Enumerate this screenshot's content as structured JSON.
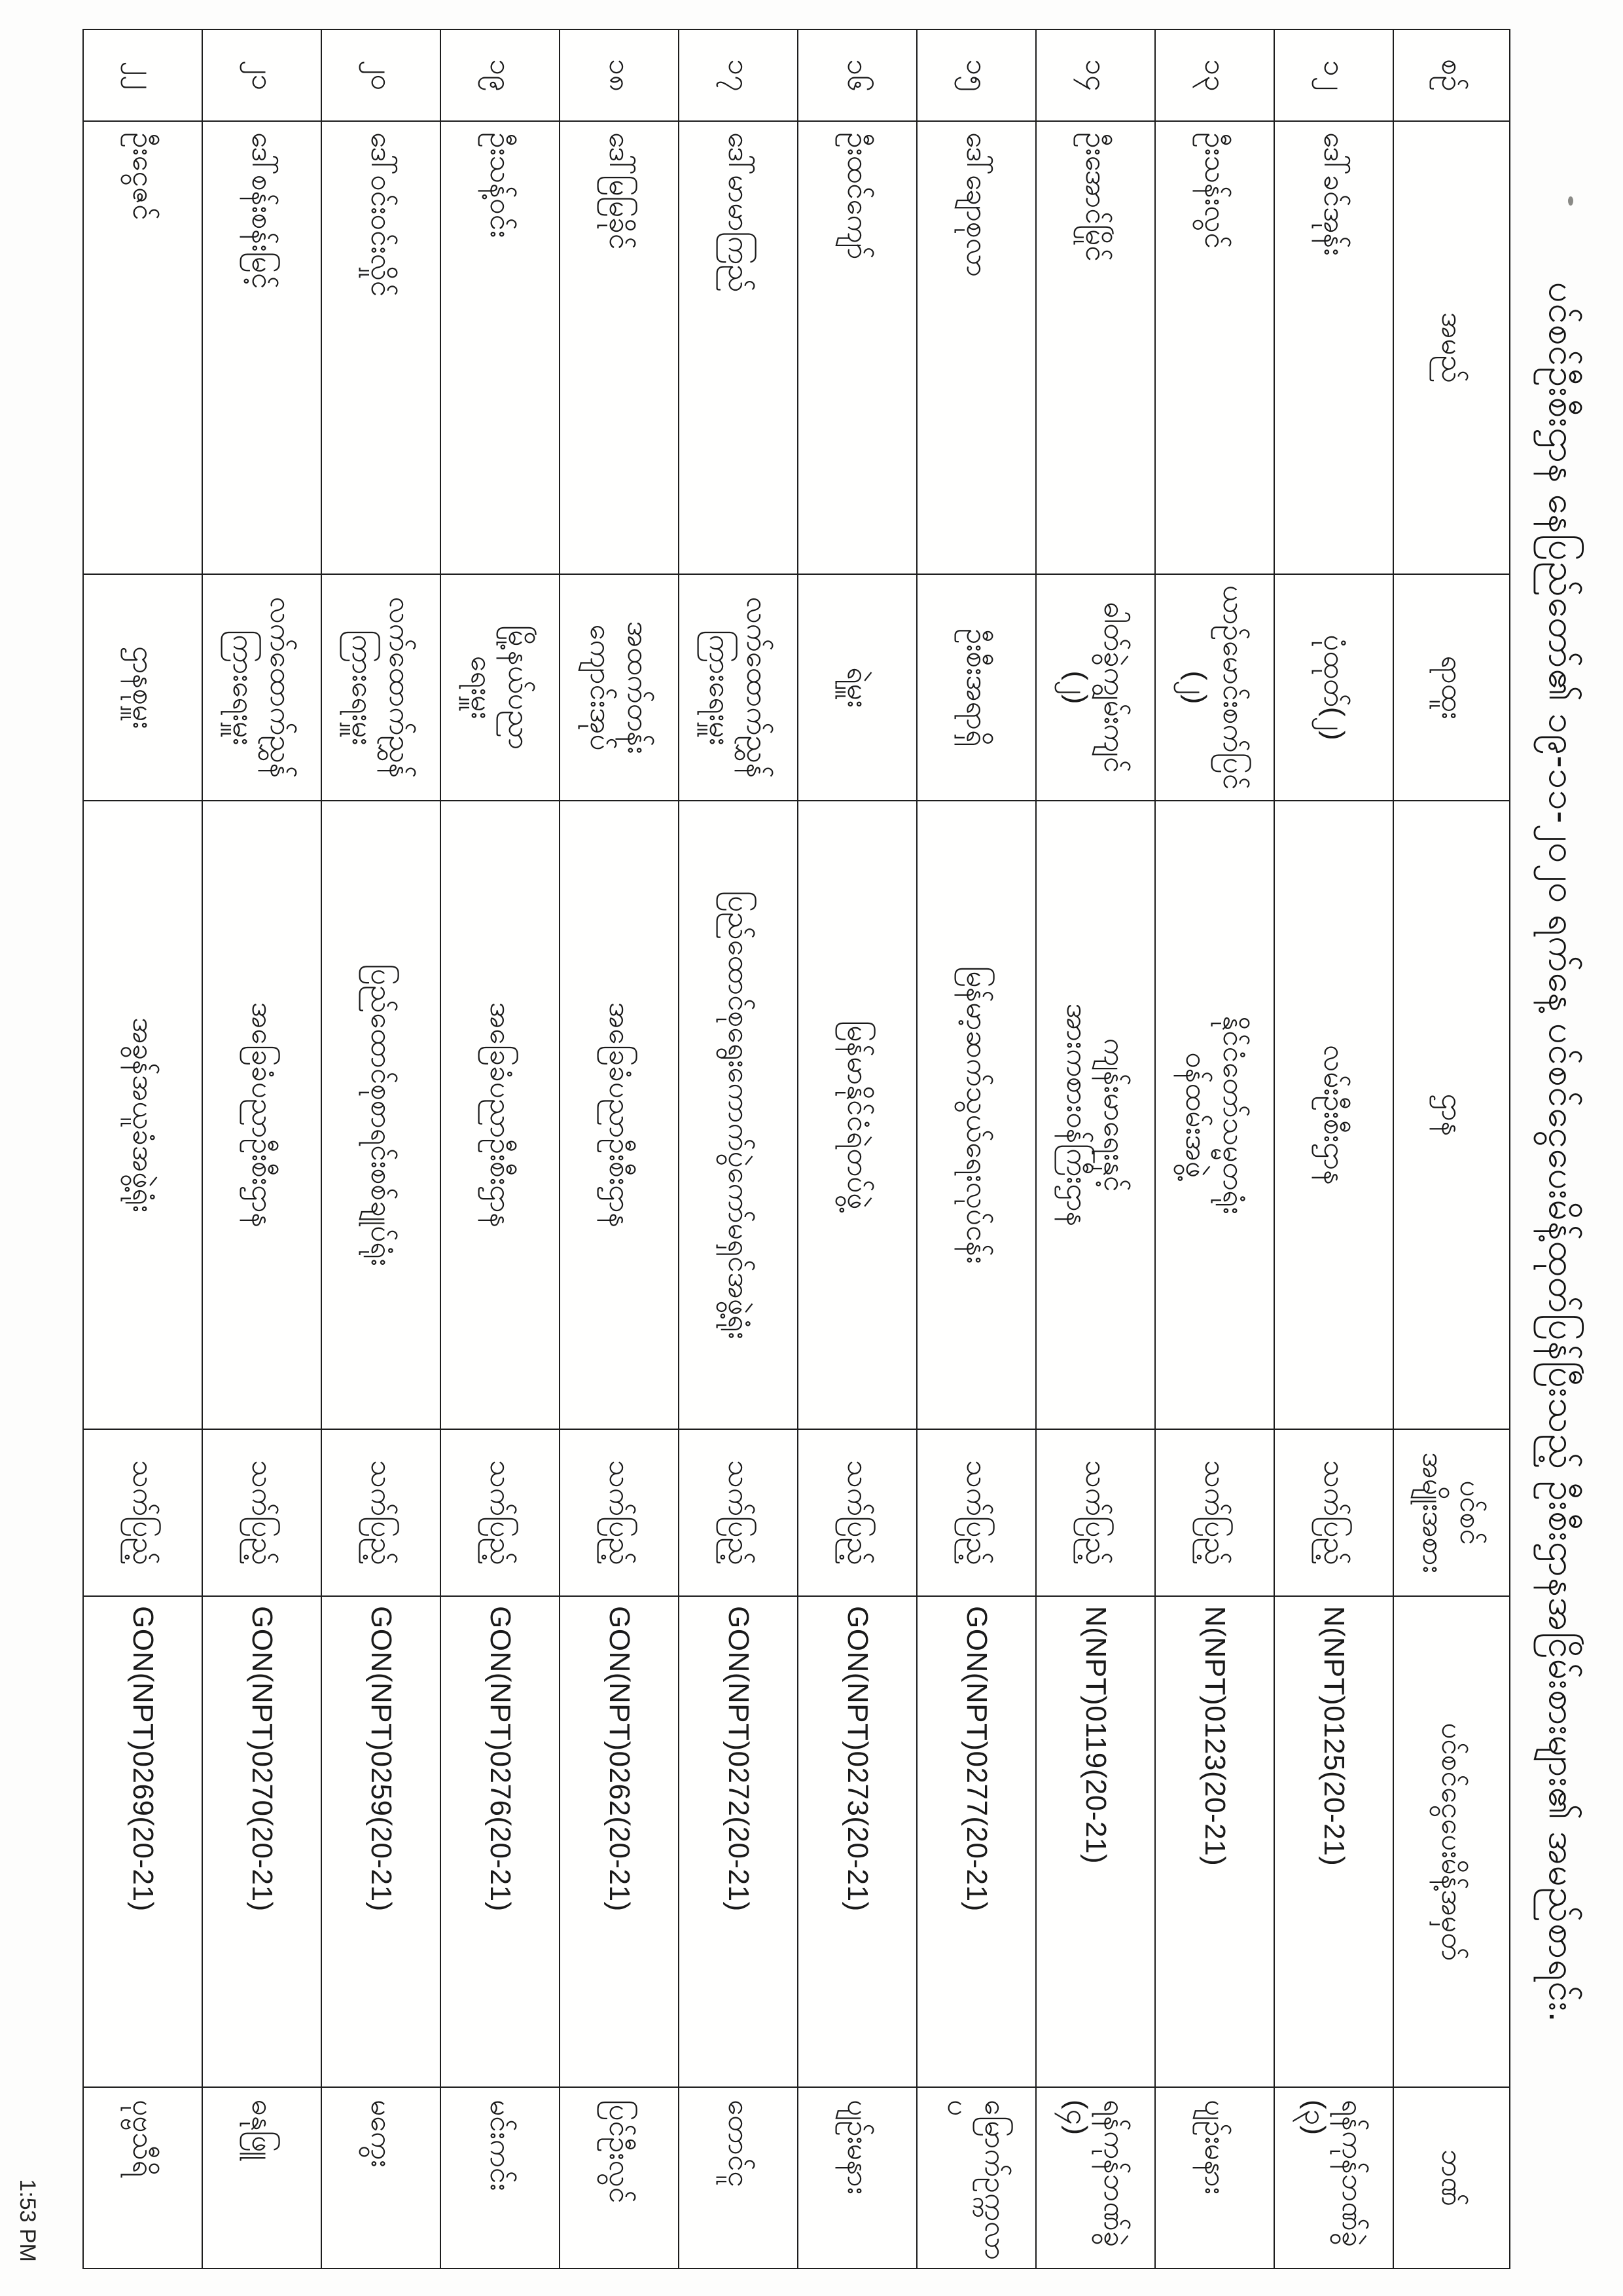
{
  "title": "ပင်စင်ဦးစီးဌာန နေပြည်တော်၏ ၁၉-၁၁-၂၀၂၀ ရက်နေ့ ပင်စင်ငွေပေးမိန့်ထုတ်ပြန်ပြီးသည့် ဦးစီးဌာနအငြိမ်းစားများ၏ အမည်စာရင်း.",
  "footer": {
    "timestamp": "1:53 PM"
  },
  "table": {
    "headers": {
      "serial": "စဉ်",
      "name": "အမည်",
      "position": "ရာထူး",
      "department": "ဌာန",
      "pension_type": "ပင်စင်\nအမျိုးအစား",
      "payment_no": "ပင်စင်ငွေပေးမိန့်အမှတ်",
      "bank": "ဘဏ်"
    },
    "rows": [
      {
        "serial": "၁၂",
        "name": "ဒေါ်ခင်အုန်း",
        "position": "ပုံထုတ်(၂)",
        "department": "လမ်းဦးစီးဌာန",
        "pension_type": "သက်ပြည့်",
        "payment_no": "N(NPT)0125(20-21)",
        "bank": "ရန်ကုန်ဘဏ်ခွဲ\n(၃)"
      },
      {
        "serial": "၁၃",
        "name": "ဦးသန်းလွင်",
        "position": "ယာဉ်မောင်းစက်ပြင်\n(၂)",
        "department": "နိုင်ငံတော်သမ္မတရုံး\nဝန်ထမ်းအဖွဲ့",
        "pension_type": "သက်ပြည့်",
        "payment_no": "N(NPT)0123(20-21)",
        "bank": "ပျဉ်းမနား"
      },
      {
        "serial": "၁၄",
        "name": "ဦးအောင်မြိုင်",
        "position": "ဓါတ်ခွဲကျွမ်းကျင်\n(၂)",
        "department": "ကျန်းမာရေးနှင့်\nအားကစားဝန်ကြီးဌာန",
        "pension_type": "သက်ပြည့်",
        "payment_no": "N(NPT)0119(20-21)",
        "bank": "ရန်ကုန်ဘဏ်ခွဲ\n(၄)"
      },
      {
        "serial": "၁၅",
        "name": "ဒေါ်ချောစုလာ",
        "position": "ဦးစီးအရာရှိ",
        "department": "မြန်မာ့ဆက်သွယ်ရေးလုပ်ငန်း",
        "pension_type": "သက်ပြည့်",
        "payment_no": "GON(NPT)0277(20-21)",
        "bank": "မြောက်ဥက္ကလာပ"
      },
      {
        "serial": "၁၆",
        "name": "ဦးထင်ကျော်",
        "position": "ရဲမှူး",
        "department": "မြန်မာနိုင်ငံရဲတပ်ဖွဲ့",
        "pension_type": "သက်ပြည့်",
        "payment_no": "GON(NPT)0273(20-21)",
        "bank": "ပျဉ်းမနား"
      },
      {
        "serial": "၁၇",
        "name": "ဒေါ်မာမာကြည်",
        "position": "လက်ထောက်ညွှန်ကြားရေးမှူး",
        "department": "ပြည်ထောင်စုရွေးကောက်ပွဲကော်မရှင်အဖွဲ့ရုံး",
        "pension_type": "သက်ပြည့်",
        "payment_no": "GON(NPT)0272(20-21)",
        "bank": "တောင်ငူ"
      },
      {
        "serial": "၁၈",
        "name": "ဒေါ်မြမြခိုင်",
        "position": "အထက်တန်း\nကျောင်းအုပ်",
        "department": "အခြေခံပညာဦးစီးဌာန",
        "pension_type": "သက်ပြည့်",
        "payment_no": "GON(NPT)0262(20-21)",
        "bank": "ပြင်ဦးလွင်"
      },
      {
        "serial": "၁၉",
        "name": "ဦးသန့်ဝင်း",
        "position": "မြို့နယ်ပညာ\nရေးမှူး",
        "department": "အခြေခံပညာဦးစီးဌာန",
        "pension_type": "သက်ပြည့်",
        "payment_no": "GON(NPT)0276(20-21)",
        "bank": "မင်းကင်း"
      },
      {
        "serial": "၂၀",
        "name": "ဒေါ်ဝင်းဝင်းလှိုင်",
        "position": "လက်ထောက်ညွှန်ကြားရေးမှူး",
        "department": "ပြည်ထောင်စုစာရင်းစစ်ချုပ်ရုံး",
        "pension_type": "သက်ပြည့်",
        "payment_no": "GON(NPT)0259(20-21)",
        "bank": "မကွေး"
      },
      {
        "serial": "၂၁",
        "name": "ဒေါ်စန်းစန်းမြင့်",
        "position": "လက်ထောက်ညွှန်ကြားရေးမှူး",
        "department": "အခြေခံပညာဦးစီးဌာန",
        "pension_type": "သက်ပြည့်",
        "payment_no": "GON(NPT)0270(20-21)",
        "bank": "ဓနုဖြူ"
      },
      {
        "serial": "၂၂",
        "name": "ဦးငွေဇင်",
        "position": "ဌာနစုမှူး",
        "department": "အခွန်အယူခံအဖွဲ့ရုံး",
        "pension_type": "သက်ပြည့်",
        "payment_no": "GON(NPT)0269(20-21)",
        "bank": "ပုဗ္ဗသီရိ"
      }
    ]
  }
}
